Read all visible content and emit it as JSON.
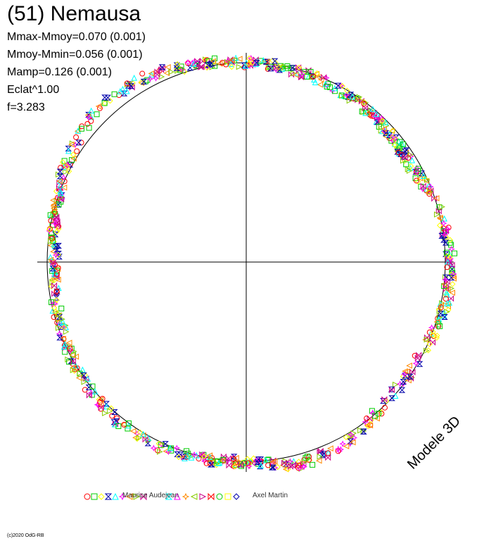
{
  "title": "(51) Nemausa",
  "stats": [
    "Mmax-Mmoy=0.070 (0.001)",
    "Mmoy-Mmin=0.056 (0.001)",
    "Mamp=0.126 (0.001)",
    "Eclat^1.00",
    "f=3.283"
  ],
  "model_label": "Modele 3D",
  "credit": "(c)2020 OdG-RB",
  "chart_data": {
    "type": "scatter",
    "projection": "polar lightcurve (magnitude vs rotational phase)",
    "reference": "circle = mean magnitude",
    "period_factor": 3.283,
    "amplitude": 0.126,
    "mmax_minus_mmoy": 0.07,
    "mmoy_minus_mmin": 0.056,
    "observers": [
      "Maurice Audejean",
      "Axel Martin"
    ],
    "series_colors": [
      "#ff0000",
      "#00cc00",
      "#ffff00",
      "#0000aa",
      "#00ffff",
      "#ff00ff",
      "#ff8800",
      "#88cc00",
      "#cc0088"
    ],
    "marker_symbols": [
      "circle",
      "square",
      "diamond",
      "hourglass",
      "triangle",
      "star",
      "triangle-left",
      "triangle-right",
      "bowtie"
    ],
    "radius_profile": {
      "phase_deg": [
        0,
        15,
        30,
        45,
        60,
        75,
        90,
        105,
        120,
        135,
        150,
        165,
        180,
        195,
        210,
        225,
        240,
        255,
        270,
        285,
        300,
        315,
        330,
        345
      ],
      "relative_radius": [
        1.0,
        0.99,
        0.985,
        0.97,
        0.96,
        1.0,
        1.03,
        1.02,
        0.99,
        0.99,
        1.03,
        1.05,
        1.0,
        1.01,
        1.03,
        1.02,
        1.0,
        0.98,
        0.96,
        0.99,
        1.03,
        1.07,
        1.06,
        1.02
      ]
    }
  }
}
